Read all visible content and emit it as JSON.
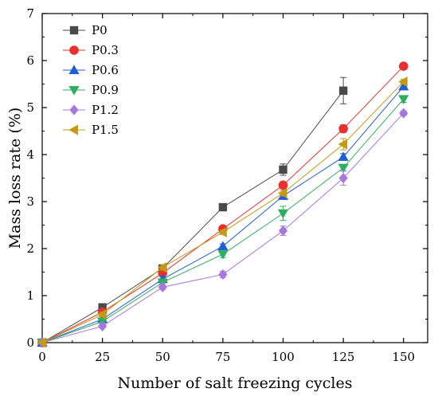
{
  "chart_data": {
    "type": "line",
    "title": "",
    "xlabel": "Number of salt freezing cycles",
    "ylabel": "Mass loss rate (%)",
    "xlim": [
      0,
      160
    ],
    "ylim": [
      0,
      7
    ],
    "x_ticks": [
      0,
      25,
      50,
      75,
      100,
      125,
      150
    ],
    "y_ticks": [
      0,
      1,
      2,
      3,
      4,
      5,
      6,
      7
    ],
    "grid": false,
    "legend_position": "top-left",
    "error_bars": true,
    "series": [
      {
        "name": "P0",
        "color": "#4a4a4a",
        "marker": "square",
        "x": [
          0,
          25,
          50,
          75,
          100,
          125
        ],
        "y": [
          0,
          0.75,
          1.58,
          2.88,
          3.68,
          5.36
        ],
        "err": [
          0.02,
          0.08,
          0.07,
          0.05,
          0.12,
          0.28
        ]
      },
      {
        "name": "P0.3",
        "color": "#e8302e",
        "marker": "circle",
        "x": [
          0,
          25,
          50,
          75,
          100,
          125,
          150
        ],
        "y": [
          0,
          0.65,
          1.48,
          2.42,
          3.35,
          4.55,
          5.88
        ],
        "err": [
          0.02,
          0.05,
          0.05,
          0.05,
          0.05,
          0.08,
          0.05
        ]
      },
      {
        "name": "P0.6",
        "color": "#1f5fd6",
        "marker": "triangle-up",
        "x": [
          0,
          25,
          50,
          75,
          100,
          125,
          150
        ],
        "y": [
          0,
          0.5,
          1.35,
          2.05,
          3.12,
          3.95,
          5.45
        ],
        "err": [
          0.02,
          0.05,
          0.05,
          0.05,
          0.05,
          0.07,
          0.07
        ]
      },
      {
        "name": "P0.9",
        "color": "#2fae5f",
        "marker": "triangle-down",
        "x": [
          0,
          25,
          50,
          75,
          100,
          125,
          150
        ],
        "y": [
          0,
          0.45,
          1.28,
          1.88,
          2.75,
          3.72,
          5.18
        ],
        "err": [
          0.02,
          0.05,
          0.05,
          0.07,
          0.15,
          0.07,
          0.07
        ]
      },
      {
        "name": "P1.2",
        "color": "#a877dd",
        "marker": "diamond",
        "x": [
          0,
          25,
          50,
          75,
          100,
          125,
          150
        ],
        "y": [
          0,
          0.35,
          1.18,
          1.45,
          2.38,
          3.5,
          4.88
        ],
        "err": [
          0.02,
          0.04,
          0.05,
          0.07,
          0.1,
          0.15,
          0.05
        ]
      },
      {
        "name": "P1.5",
        "color": "#c49a14",
        "marker": "triangle-left",
        "x": [
          0,
          25,
          50,
          75,
          100,
          125,
          150
        ],
        "y": [
          0,
          0.6,
          1.6,
          2.35,
          3.18,
          4.22,
          5.55
        ],
        "err": [
          0.02,
          0.05,
          0.06,
          0.05,
          0.06,
          0.12,
          0.05
        ]
      }
    ]
  }
}
